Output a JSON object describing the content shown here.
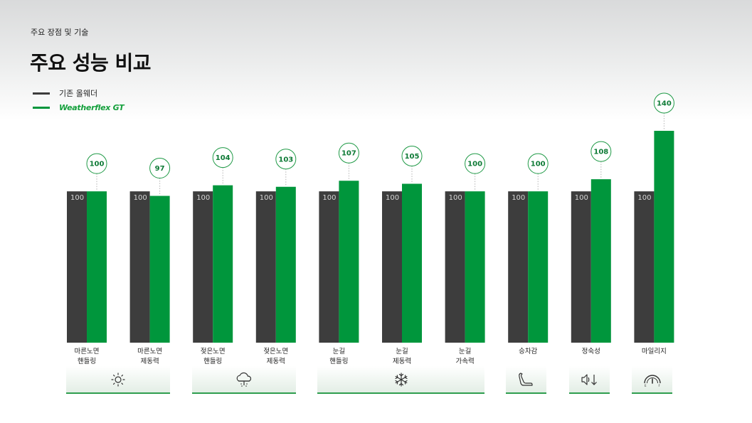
{
  "header": {
    "breadcrumb": "주요 장점 및 기술",
    "title": "주요 성능 비교"
  },
  "legend": {
    "items": [
      {
        "label": "기존 올웨더",
        "color": "#3d3d3d"
      },
      {
        "label": "Weatherflex GT",
        "color": "#00963c"
      }
    ]
  },
  "colors": {
    "baseline": "#3d3d3d",
    "accent": "#00963c",
    "baseline_label": "#d6d6d6"
  },
  "chart_data": {
    "type": "bar",
    "ylim": [
      0,
      140
    ],
    "grid": false,
    "legend_position": "top-left",
    "categories": [
      [
        "마른노면",
        "핸들링"
      ],
      [
        "마른노면",
        "제동력"
      ],
      [
        "젖은노면",
        "핸들링"
      ],
      [
        "젖은노면",
        "제동력"
      ],
      [
        "눈길",
        "핸들링"
      ],
      [
        "눈길",
        "제동력"
      ],
      [
        "눈길",
        "가속력"
      ],
      [
        "승차감"
      ],
      [
        "정숙성"
      ],
      [
        "마일리지"
      ]
    ],
    "series": [
      {
        "name": "기존 올웨더",
        "values": [
          100,
          100,
          100,
          100,
          100,
          100,
          100,
          100,
          100,
          100
        ]
      },
      {
        "name": "Weatherflex GT",
        "values": [
          100,
          97,
          104,
          103,
          107,
          105,
          100,
          100,
          108,
          140
        ]
      }
    ]
  },
  "condition_groups": [
    {
      "icon": "sun-icon",
      "categories": [
        0,
        1
      ]
    },
    {
      "icon": "rain-cloud-icon",
      "categories": [
        2,
        3
      ]
    },
    {
      "icon": "snowflake-icon",
      "categories": [
        4,
        5,
        6
      ]
    },
    {
      "icon": "seat-icon",
      "categories": [
        7
      ]
    },
    {
      "icon": "quiet-speaker-icon",
      "categories": [
        8
      ]
    },
    {
      "icon": "fuel-gauge-icon",
      "categories": [
        9
      ]
    }
  ]
}
